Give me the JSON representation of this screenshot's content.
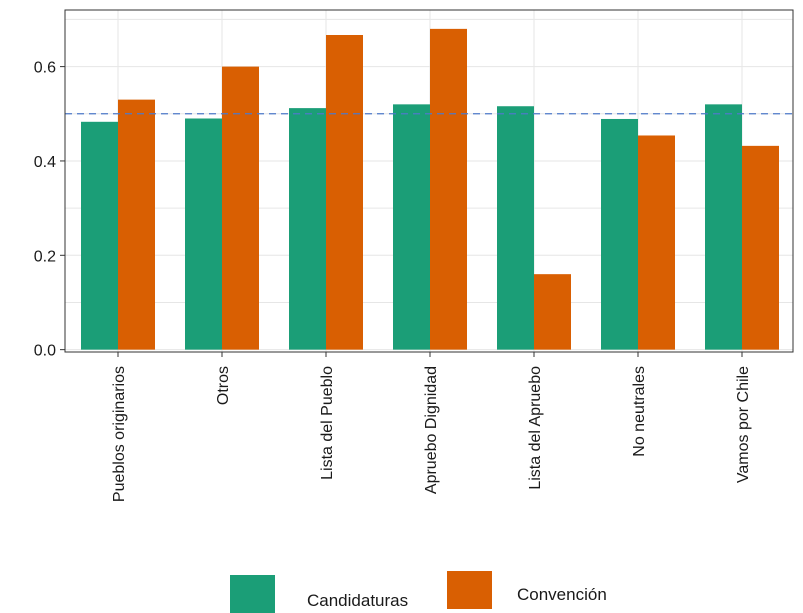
{
  "chart_data": {
    "type": "bar",
    "categories": [
      "Pueblos originarios",
      "Otros",
      "Lista del Pueblo",
      "Apruebo Dignidad",
      "Lista del Apruebo",
      "No neutrales",
      "Vamos por Chile"
    ],
    "series": [
      {
        "name": "Candidaturas",
        "color": "#1b9e77",
        "values": [
          0.483,
          0.49,
          0.512,
          0.52,
          0.516,
          0.489,
          0.52
        ]
      },
      {
        "name": "Convención",
        "color": "#d95f02",
        "values": [
          0.53,
          0.6,
          0.667,
          0.68,
          0.16,
          0.454,
          0.432
        ]
      }
    ],
    "yticks": [
      "0.0",
      "0.2",
      "0.4",
      "0.6"
    ],
    "ylim": [
      -0.005,
      0.72
    ],
    "reference_line": {
      "y": 0.5,
      "style": "dashed",
      "color": "#4e79c9"
    },
    "grid": true,
    "legend_position": "bottom",
    "title": "",
    "xlabel": "",
    "ylabel": ""
  }
}
